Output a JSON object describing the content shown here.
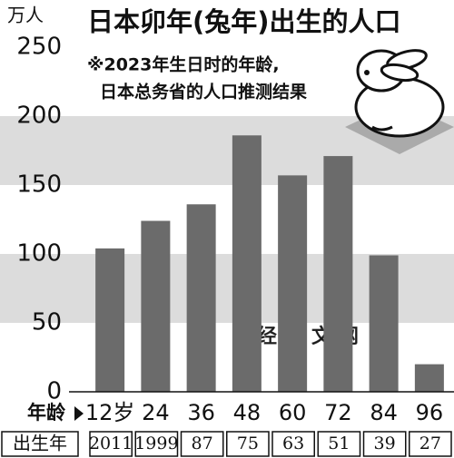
{
  "chart_data": {
    "type": "bar",
    "title": "日本卯年(兔年)出生的人口",
    "subtitle": [
      "※2023年生日时的年龄,",
      "日本总务省的人口推测结果"
    ],
    "y_unit": "万人",
    "categories_label": "年龄",
    "categories": [
      "12岁",
      "24",
      "36",
      "48",
      "60",
      "72",
      "84",
      "96"
    ],
    "birth_year_label": "出生年",
    "birth_years": [
      "2011",
      "1999",
      "87",
      "75",
      "63",
      "51",
      "39",
      "27"
    ],
    "values": [
      104,
      124,
      136,
      186,
      157,
      171,
      99,
      20
    ],
    "color": "#6b6b6b",
    "ylim": [
      0,
      250
    ],
    "yticks": [
      0,
      50,
      100,
      150,
      200,
      250
    ],
    "grid": "bands",
    "band_color": "#dcdcdc",
    "watermark": "日经中文网"
  }
}
